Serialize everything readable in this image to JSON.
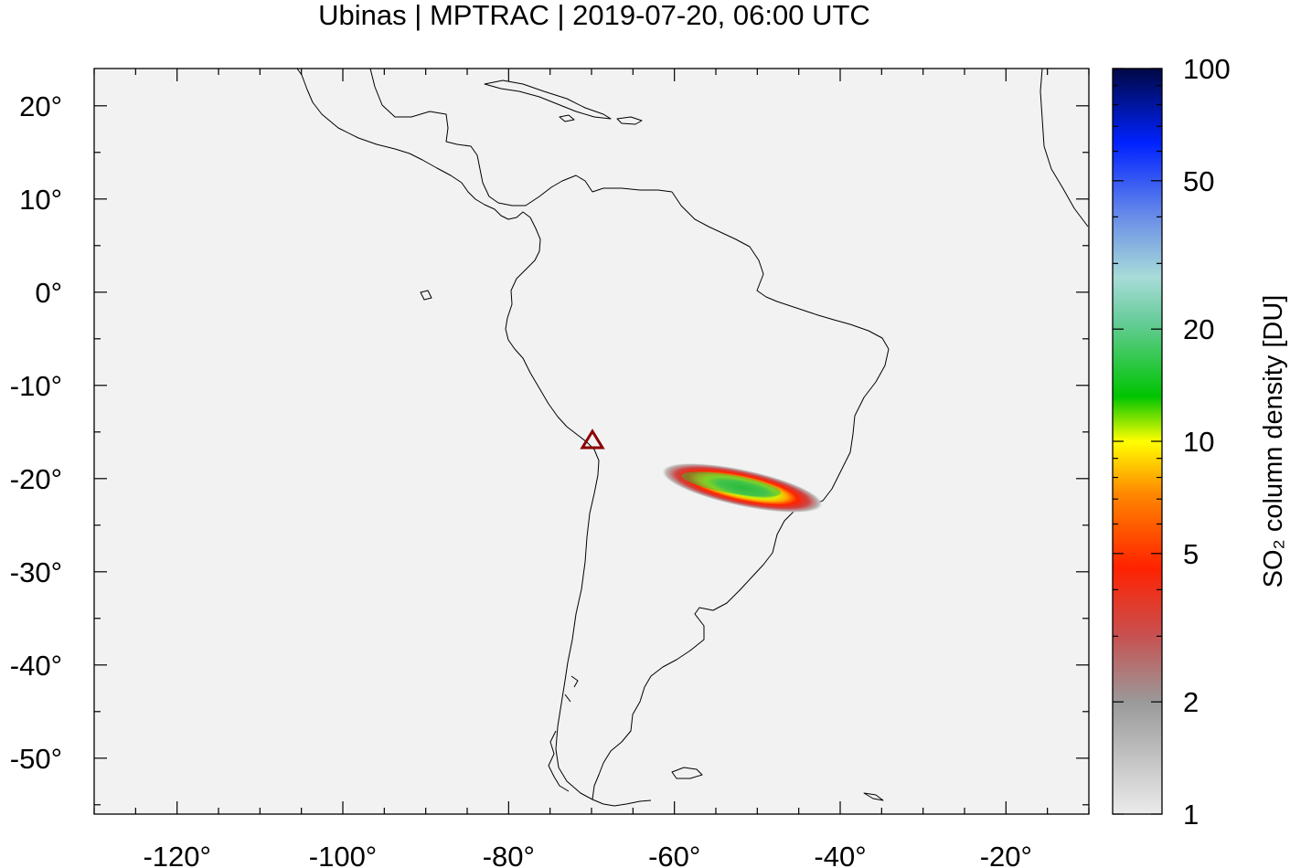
{
  "title": "Ubinas | MPTRAC | 2019-07-20, 06:00 UTC",
  "map": {
    "lon_range": [
      -130,
      -10
    ],
    "lat_range": [
      -56,
      24
    ],
    "x_ticks": [
      -120,
      -100,
      -80,
      -60,
      -40,
      -20
    ],
    "y_ticks": [
      20,
      10,
      0,
      -10,
      -20,
      -30,
      -40,
      -50
    ],
    "x_tick_labels": [
      "-120°",
      "-100°",
      "-80°",
      "-60°",
      "-40°",
      "-20°"
    ],
    "y_tick_labels": [
      "20°",
      "10°",
      "0°",
      "-10°",
      "-20°",
      "-30°",
      "-40°",
      "-50°"
    ],
    "background_color": "#f2f2f2",
    "volcano": {
      "name": "Ubinas",
      "lon": -70.9,
      "lat": -16.4,
      "marker": "triangle-icon",
      "color": "#8b0000"
    }
  },
  "colorbar": {
    "title": "SO₂ column density [DU]",
    "scale": "log",
    "range": [
      1,
      100
    ],
    "ticks": [
      1,
      2,
      5,
      10,
      20,
      50,
      100
    ],
    "tick_labels": [
      "1",
      "2",
      "5",
      "10",
      "20",
      "50",
      "100"
    ],
    "colors": [
      "#e6e6e6",
      "#999999",
      "#cc4444",
      "#ff0000",
      "#ff8800",
      "#ffff00",
      "#00bb00",
      "#aadddd",
      "#5588ee",
      "#0000ff",
      "#000066"
    ]
  },
  "plume": {
    "peak_du": 20,
    "center_lon": -54,
    "center_lat": -21,
    "extent_lon": [
      -63,
      -46
    ],
    "extent_lat": [
      -23,
      -19.5
    ]
  }
}
